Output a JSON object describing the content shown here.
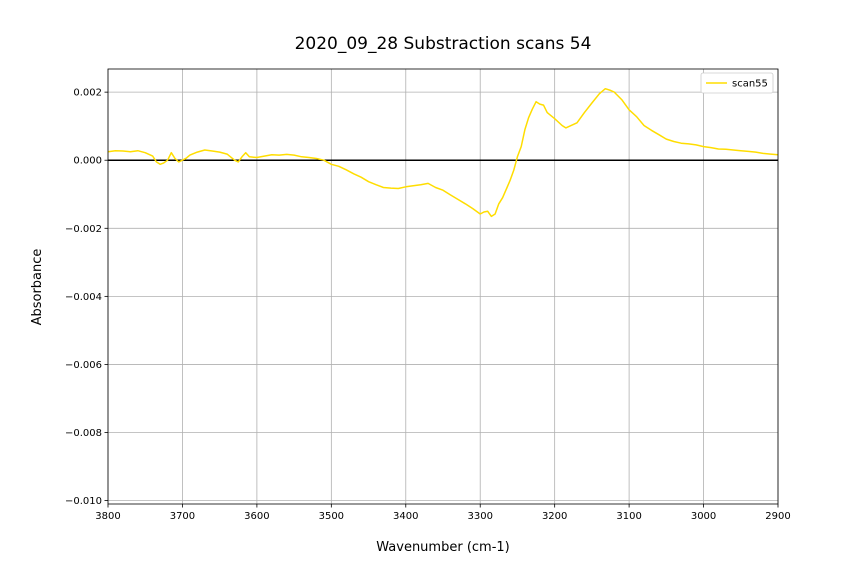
{
  "chart_data": {
    "type": "line",
    "title": "2020_09_28 Substraction scans 54",
    "xlabel": "Wavenumber (cm-1)",
    "ylabel": "Absorbance",
    "xlim": [
      3800,
      2900
    ],
    "ylim": [
      -0.0101,
      0.00268
    ],
    "x_reversed": true,
    "grid": true,
    "legend_position": "top-right",
    "x_ticks": [
      3800,
      3700,
      3600,
      3500,
      3400,
      3300,
      3200,
      3100,
      3000,
      2900
    ],
    "x_tick_labels": [
      "3800",
      "3700",
      "3600",
      "3500",
      "3400",
      "3300",
      "3200",
      "3100",
      "3000",
      "2900"
    ],
    "y_ticks": [
      0.002,
      0.0,
      -0.002,
      -0.004,
      -0.006,
      -0.008,
      -0.01
    ],
    "y_tick_labels": [
      "0.002",
      "0.000",
      "−0.002",
      "−0.004",
      "−0.006",
      "−0.008",
      "−0.010"
    ],
    "reference_line_y": 0.0,
    "reference_line_color": "#000000",
    "series": [
      {
        "name": "scan55",
        "color": "#ffdd00",
        "x": [
          3800,
          3790,
          3780,
          3770,
          3760,
          3750,
          3740,
          3735,
          3730,
          3725,
          3720,
          3715,
          3710,
          3705,
          3700,
          3695,
          3690,
          3680,
          3670,
          3660,
          3650,
          3640,
          3630,
          3625,
          3620,
          3615,
          3610,
          3600,
          3590,
          3580,
          3570,
          3560,
          3550,
          3540,
          3530,
          3520,
          3510,
          3500,
          3490,
          3480,
          3470,
          3460,
          3450,
          3440,
          3430,
          3420,
          3410,
          3400,
          3390,
          3380,
          3370,
          3360,
          3350,
          3340,
          3330,
          3320,
          3310,
          3300,
          3295,
          3290,
          3285,
          3280,
          3275,
          3270,
          3265,
          3260,
          3255,
          3250,
          3245,
          3240,
          3235,
          3230,
          3225,
          3220,
          3215,
          3210,
          3200,
          3190,
          3185,
          3180,
          3170,
          3160,
          3150,
          3140,
          3132,
          3125,
          3120,
          3110,
          3100,
          3090,
          3080,
          3070,
          3060,
          3050,
          3040,
          3030,
          3020,
          3010,
          3000,
          2990,
          2980,
          2970,
          2960,
          2950,
          2940,
          2930,
          2920,
          2910,
          2900
        ],
        "y": [
          0.00025,
          0.00028,
          0.00027,
          0.00025,
          0.00028,
          0.00022,
          0.00012,
          -5e-05,
          -0.00012,
          -8e-05,
          0.0,
          0.00022,
          5e-05,
          -5e-05,
          0.0,
          6e-05,
          0.00015,
          0.00024,
          0.0003,
          0.00027,
          0.00024,
          0.00018,
          0.0,
          -5e-05,
          0.0001,
          0.00022,
          0.0001,
          8e-05,
          0.00012,
          0.00016,
          0.00015,
          0.00017,
          0.00015,
          0.0001,
          8e-05,
          5e-05,
          0.0,
          -0.00012,
          -0.00018,
          -0.00028,
          -0.0004,
          -0.0005,
          -0.00063,
          -0.00072,
          -0.0008,
          -0.00082,
          -0.00083,
          -0.00078,
          -0.00075,
          -0.00072,
          -0.00068,
          -0.0008,
          -0.00088,
          -0.00102,
          -0.00115,
          -0.00128,
          -0.00142,
          -0.00158,
          -0.00152,
          -0.0015,
          -0.00165,
          -0.00158,
          -0.00128,
          -0.0011,
          -0.00085,
          -0.0006,
          -0.0003,
          0.0001,
          0.0004,
          0.0009,
          0.00125,
          0.0015,
          0.00172,
          0.00165,
          0.00162,
          0.0014,
          0.00122,
          0.00102,
          0.00095,
          0.001,
          0.0011,
          0.0014,
          0.00168,
          0.00195,
          0.0021,
          0.00205,
          0.002,
          0.00178,
          0.00148,
          0.00128,
          0.00102,
          0.00088,
          0.00075,
          0.00062,
          0.00055,
          0.0005,
          0.00048,
          0.00045,
          0.0004,
          0.00037,
          0.00033,
          0.00032,
          0.0003,
          0.00028,
          0.00026,
          0.00024,
          0.0002,
          0.00018,
          0.00016
        ]
      }
    ]
  }
}
